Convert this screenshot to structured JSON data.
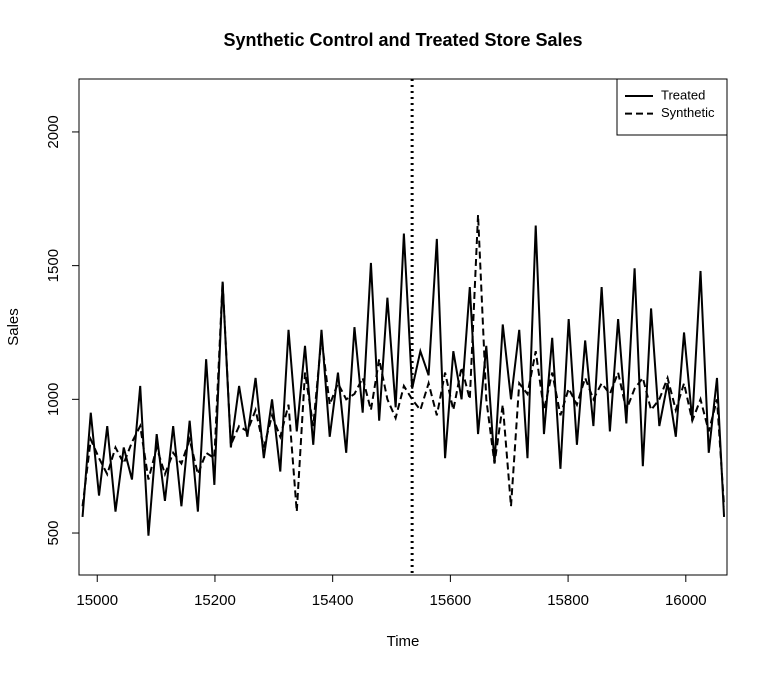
{
  "chart_data": {
    "type": "line",
    "title": "Synthetic Control and Treated Store Sales",
    "x_label": "Time",
    "y_label": "Sales",
    "x": [
      14975,
      14989,
      15003,
      15017,
      15031,
      15045,
      15059,
      15073,
      15087,
      15101,
      15115,
      15129,
      15143,
      15157,
      15171,
      15185,
      15199,
      15213,
      15227,
      15241,
      15255,
      15269,
      15283,
      15297,
      15311,
      15325,
      15339,
      15353,
      15367,
      15381,
      15395,
      15409,
      15423,
      15437,
      15451,
      15465,
      15479,
      15493,
      15507,
      15521,
      15535,
      15549,
      15563,
      15577,
      15591,
      15605,
      15619,
      15633,
      15647,
      15661,
      15675,
      15689,
      15703,
      15717,
      15731,
      15745,
      15759,
      15773,
      15787,
      15801,
      15815,
      15829,
      15843,
      15857,
      15871,
      15885,
      15899,
      15913,
      15927,
      15941,
      15955,
      15969,
      15983,
      15997,
      16011,
      16025,
      16039,
      16053,
      16065
    ],
    "series": [
      {
        "name": "Treated",
        "color": "#000000",
        "linestyle": "solid",
        "values": [
          560,
          950,
          640,
          900,
          580,
          820,
          700,
          1050,
          490,
          870,
          620,
          900,
          600,
          920,
          580,
          1150,
          680,
          1440,
          820,
          1050,
          860,
          1080,
          780,
          1000,
          730,
          1260,
          880,
          1200,
          830,
          1260,
          860,
          1100,
          800,
          1270,
          950,
          1510,
          920,
          1380,
          970,
          1620,
          1040,
          1180,
          1090,
          1600,
          780,
          1180,
          1000,
          1420,
          870,
          1200,
          760,
          1280,
          1000,
          1260,
          780,
          1650,
          870,
          1230,
          740,
          1300,
          830,
          1220,
          900,
          1420,
          880,
          1300,
          910,
          1490,
          750,
          1340,
          900,
          1060,
          860,
          1250,
          920,
          1480,
          800,
          1080,
          560
        ]
      },
      {
        "name": "Synthetic",
        "color": "#000000",
        "linestyle": "dashed",
        "values": [
          600,
          850,
          780,
          720,
          820,
          760,
          840,
          900,
          700,
          820,
          720,
          800,
          760,
          850,
          720,
          800,
          780,
          1440,
          830,
          900,
          880,
          960,
          820,
          940,
          860,
          980,
          580,
          1100,
          900,
          1230,
          980,
          1060,
          1000,
          1020,
          1080,
          960,
          1150,
          1000,
          930,
          1050,
          1000,
          960,
          1060,
          940,
          1100,
          960,
          1120,
          1000,
          1690,
          1000,
          760,
          980,
          600,
          1060,
          1020,
          1180,
          960,
          1100,
          940,
          1040,
          980,
          1080,
          1000,
          1060,
          1020,
          1100,
          960,
          1040,
          1080,
          960,
          1000,
          1080,
          960,
          1060,
          920,
          1000,
          880,
          1000,
          600
        ]
      }
    ],
    "vline": 15535,
    "vline_style": "dotted",
    "xlim": [
      14969,
      16070
    ],
    "ylim": [
      343,
      2198
    ],
    "xticks": [
      15000,
      15200,
      15400,
      15600,
      15800,
      16000
    ],
    "yticks": [
      500,
      1000,
      1500,
      2000
    ],
    "legend": "top-right"
  }
}
